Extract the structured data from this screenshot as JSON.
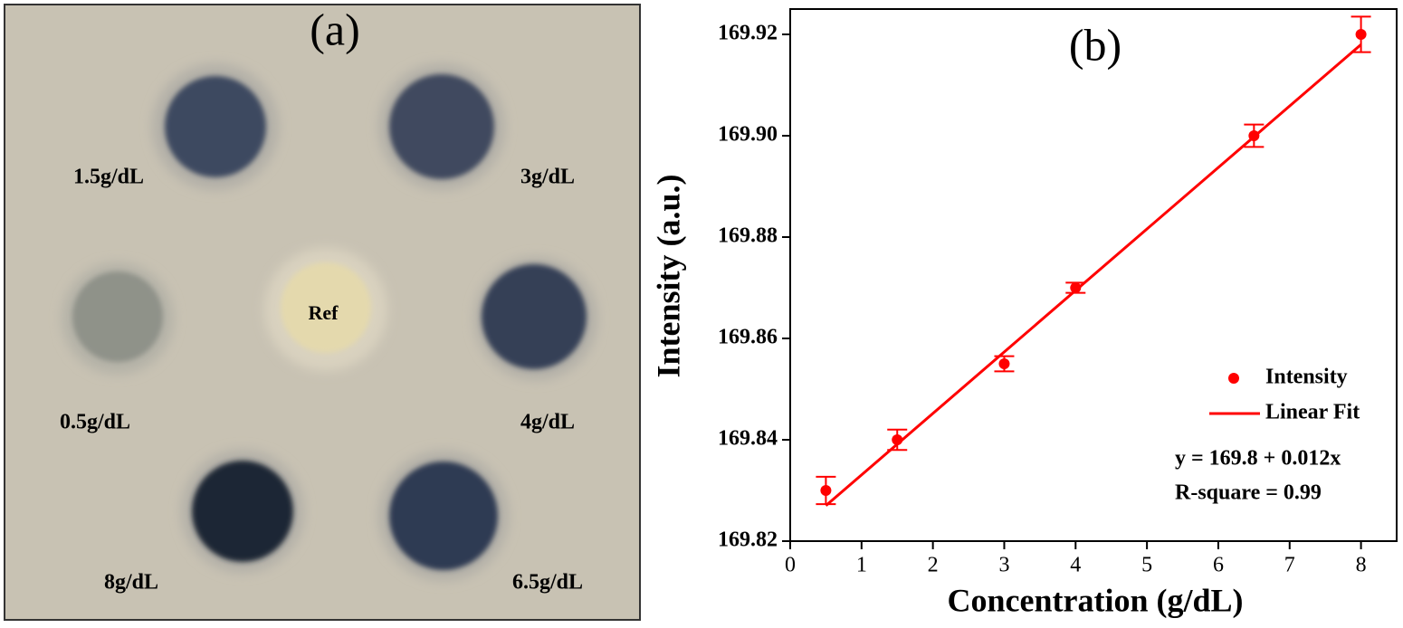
{
  "photo": {
    "label": "(a)",
    "spots": [
      "1.5g/dL",
      "3g/dL",
      "0.5g/dL",
      "Ref",
      "4g/dL",
      "8g/dL",
      "6.5g/dL"
    ]
  },
  "chart_data": {
    "type": "scatter",
    "panel_label": "(b)",
    "x_label": "Concentration (g/dL)",
    "y_label": "Intensity (a.u.)",
    "xlim": [
      0,
      8.5
    ],
    "xticks": [
      0,
      1,
      2,
      3,
      4,
      5,
      6,
      7,
      8
    ],
    "ylim": [
      169.82,
      169.925
    ],
    "yticks": [
      169.82,
      169.84,
      169.86,
      169.88,
      {
        "value": 169.9,
        "label": "169.90"
      },
      169.92
    ],
    "series": [
      {
        "name": "Intensity",
        "color": "#ff0000",
        "x": [
          0.5,
          1.5,
          3,
          4,
          6.5,
          8
        ],
        "values": [
          169.83,
          169.84,
          169.855,
          169.87,
          169.9,
          169.92
        ],
        "errors": [
          0.0027,
          0.002,
          0.0015,
          0.001,
          0.0022,
          0.0035
        ]
      },
      {
        "name": "Linear Fit",
        "color": "#ff0000",
        "x": [
          0.5,
          8
        ],
        "values": [
          169.827,
          169.918
        ]
      }
    ],
    "annotations": [
      "y = 169.8 + 0.012x",
      "R-square = 0.99"
    ]
  }
}
